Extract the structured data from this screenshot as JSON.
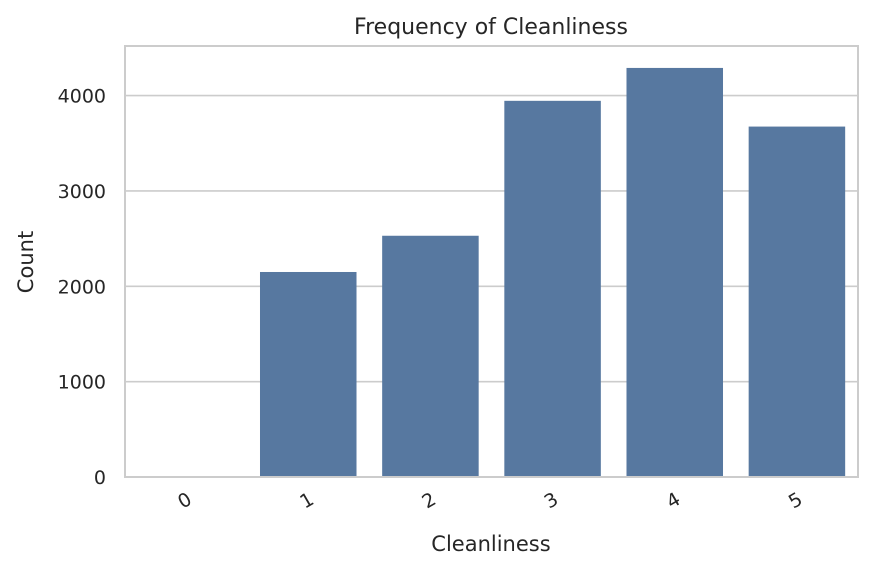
{
  "chart_data": {
    "type": "bar",
    "title": "Frequency of Cleanliness",
    "xlabel": "Cleanliness",
    "ylabel": "Count",
    "categories": [
      "0",
      "1",
      "2",
      "3",
      "4",
      "5"
    ],
    "values": [
      5,
      2150,
      2530,
      3945,
      4290,
      3675
    ],
    "ylim": [
      0,
      4520
    ],
    "yticks": [
      "0",
      "1000",
      "2000",
      "3000",
      "4000"
    ],
    "bar_color": "#5778a0",
    "grid": true,
    "xtick_rotation": "30"
  }
}
